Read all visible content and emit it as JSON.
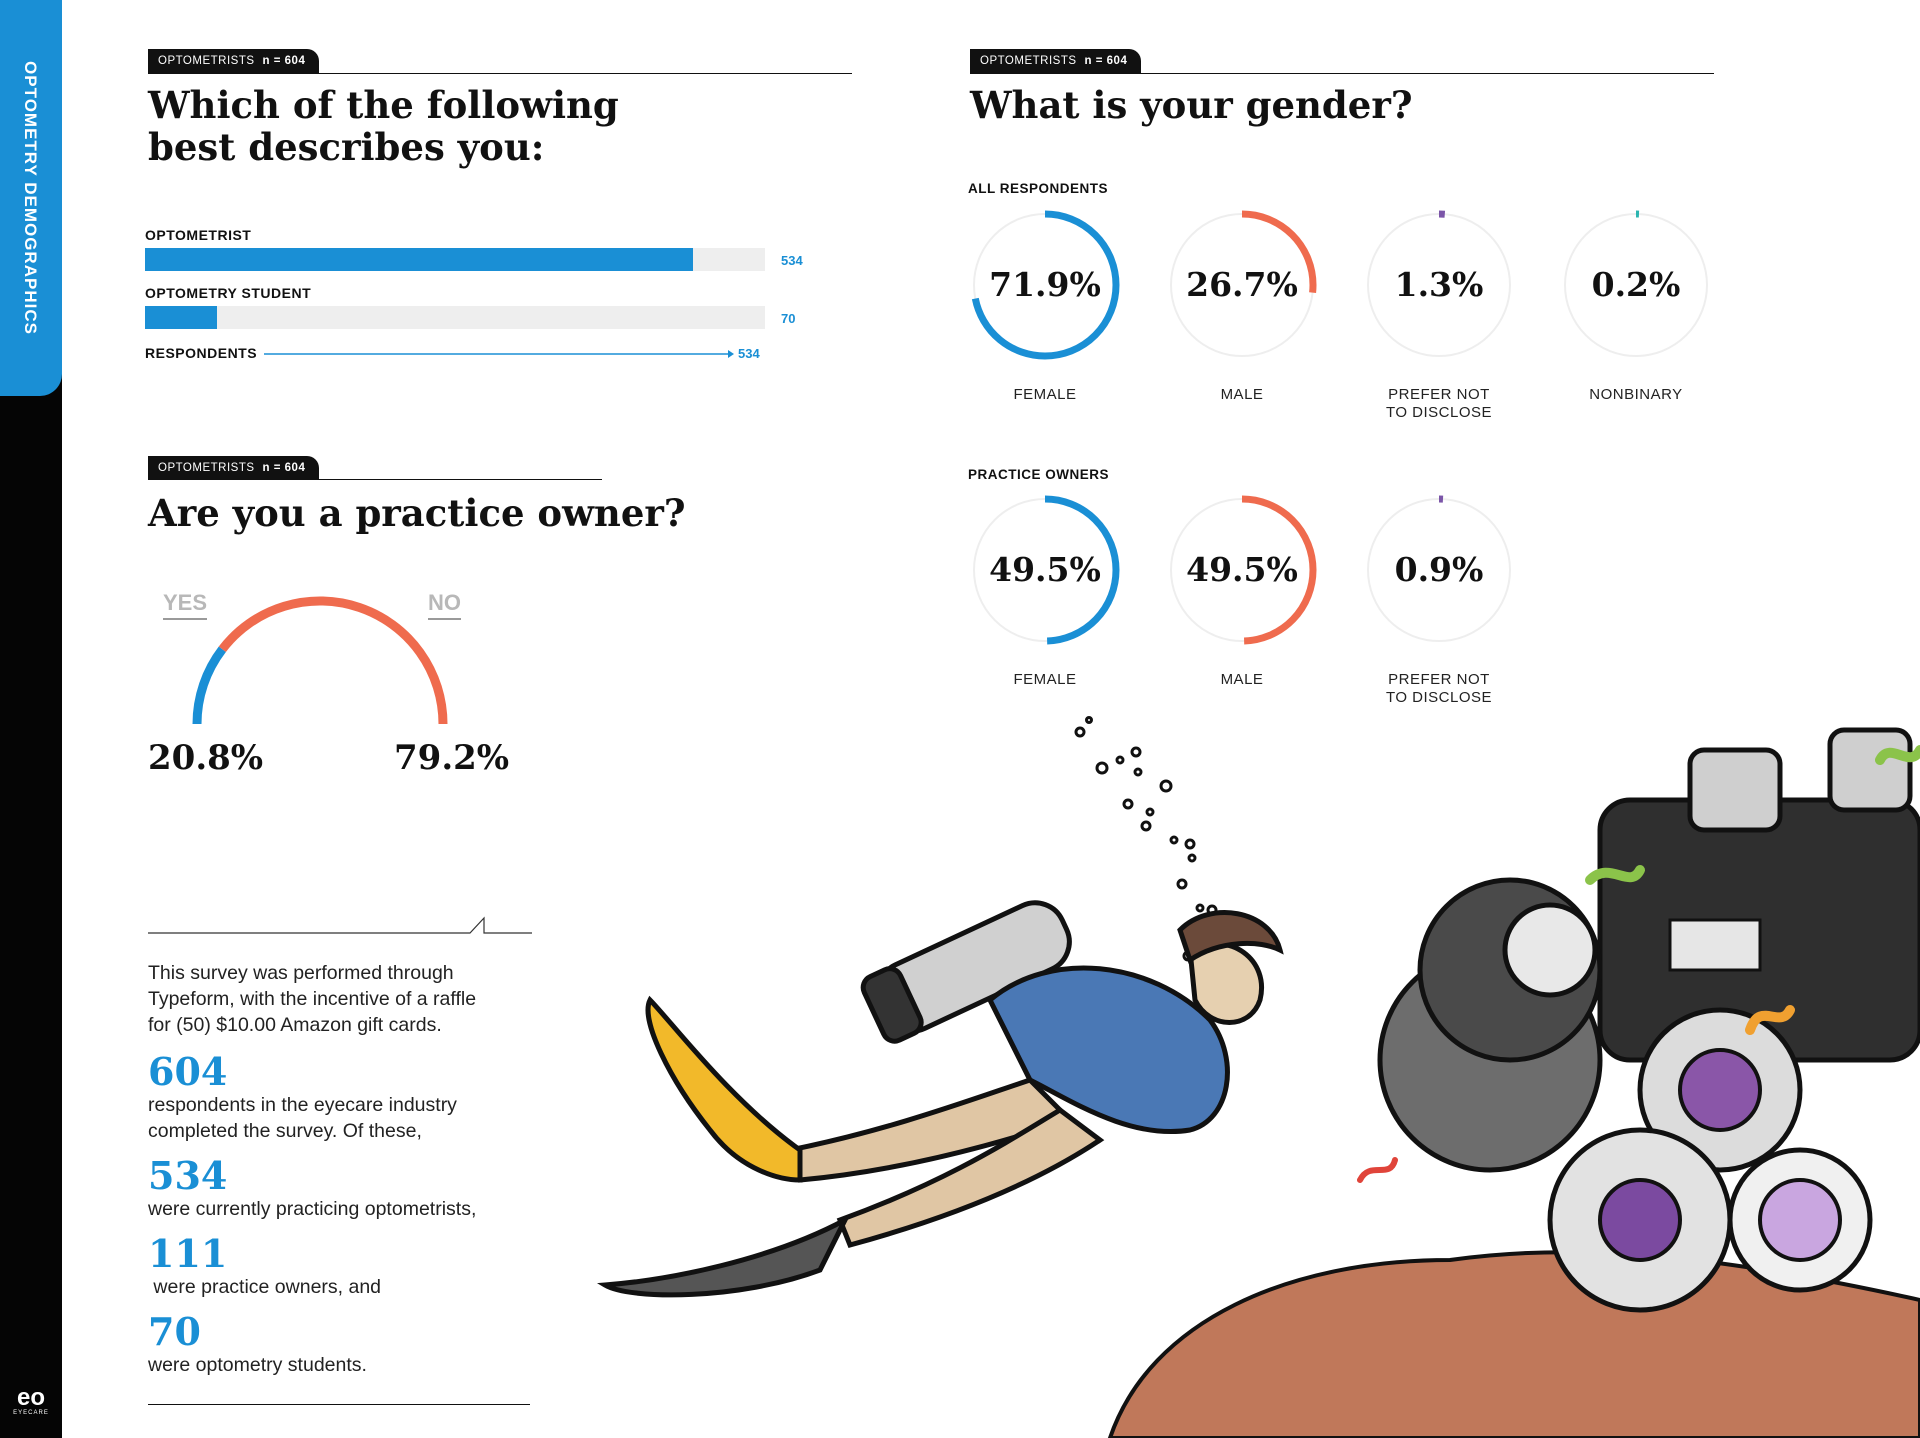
{
  "sidebar": {
    "label": "OPTOMETRY DEMOGRAPHICS",
    "logo": "eo",
    "logo_sub": "EYECARE"
  },
  "colors": {
    "blue": "#1a8fd5",
    "orange": "#ef6b4e",
    "purple": "#7b55a8",
    "teal": "#2bb5b0",
    "track": "#eeeeee"
  },
  "describes": {
    "tag": "OPTOMETRISTS",
    "n": "n = 604",
    "title_line1": "Which of the following",
    "title_line2": "best describes you:",
    "chart_data": {
      "type": "bar",
      "categories": [
        "OPTOMETRIST",
        "OPTOMETRY STUDENT"
      ],
      "values": [
        534,
        70
      ],
      "max": 604
    },
    "respondents_label": "RESPONDENTS",
    "respondents_value": "534"
  },
  "owner": {
    "tag": "OPTOMETRISTS",
    "n": "n = 604",
    "title": "Are you a practice owner?",
    "chart_data": {
      "type": "pie",
      "categories": [
        "YES",
        "NO"
      ],
      "values": [
        20.8,
        79.2
      ],
      "labels": [
        "20.8%",
        "79.2%"
      ]
    }
  },
  "gender": {
    "tag": "OPTOMETRISTS",
    "n": "n = 604",
    "title": "What is your gender?",
    "chart_data": [
      {
        "type": "pie",
        "group": "ALL RESPONDENTS",
        "categories": [
          "FEMALE",
          "MALE",
          "PREFER NOT TO DISCLOSE",
          "NONBINARY"
        ],
        "values": [
          71.9,
          26.7,
          1.3,
          0.2
        ],
        "labels": [
          "71.9%",
          "26.7%",
          "1.3%",
          "0.2%"
        ]
      },
      {
        "type": "pie",
        "group": "PRACTICE OWNERS",
        "categories": [
          "FEMALE",
          "MALE",
          "PREFER NOT TO DISCLOSE"
        ],
        "values": [
          49.5,
          49.5,
          0.9
        ],
        "labels": [
          "49.5%",
          "49.5%",
          "0.9%"
        ]
      }
    ],
    "category_lines": {
      "FEMALE": [
        "FEMALE"
      ],
      "MALE": [
        "MALE"
      ],
      "PREFER NOT TO DISCLOSE": [
        "PREFER NOT",
        "TO DISCLOSE"
      ],
      "NONBINARY": [
        "NONBINARY"
      ]
    }
  },
  "summary": {
    "intro": [
      "This survey was performed through",
      "Typeform, with the incentive of a raffle",
      "for (50) $10.00 Amazon gift cards."
    ],
    "n1": "604",
    "t1": [
      "respondents in the eyecare industry",
      "completed the survey. Of these,"
    ],
    "n2": "534",
    "t2": [
      "were currently practicing optometrists,"
    ],
    "n3": "111",
    "t3": [
      " were practice owners, and"
    ],
    "n4": "70",
    "t4": [
      "were optometry students."
    ]
  }
}
